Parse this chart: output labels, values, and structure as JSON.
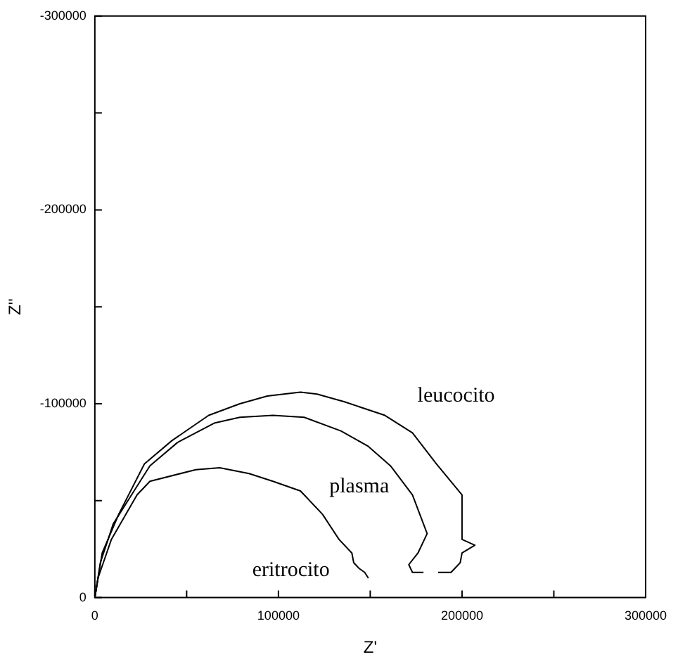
{
  "chart_data": {
    "type": "line",
    "xlabel": "Z'",
    "ylabel": "Z''",
    "xlim": [
      0,
      300000
    ],
    "ylim": [
      0,
      -300000
    ],
    "xticks": [
      0,
      {
        "value": 50000,
        "label": null
      },
      100000,
      {
        "value": 150000,
        "label": null
      },
      200000,
      {
        "value": 250000,
        "label": null
      },
      300000
    ],
    "yticks": [
      0,
      {
        "value": -50000,
        "label": null
      },
      -100000,
      {
        "value": -150000,
        "label": null
      },
      -200000,
      {
        "value": -250000,
        "label": null
      },
      -300000
    ],
    "marker": "none",
    "line_style": "solid",
    "legend": false,
    "series": [
      {
        "name": "leucocito",
        "color": "#000000",
        "x": [
          0,
          4000,
          13000,
          27000,
          42000,
          62000,
          79000,
          94000,
          112000,
          121000,
          136000,
          158000,
          173000,
          186000,
          200000,
          200000,
          207000,
          200000,
          199000,
          194000,
          187000
        ],
        "values": [
          0,
          -23000,
          -43000,
          -69000,
          -81000,
          -94000,
          -100000,
          -104000,
          -106000,
          -105000,
          -101000,
          -94000,
          -85000,
          -69000,
          -53000,
          -30000,
          -27000,
          -23000,
          -18000,
          -13000,
          -13000
        ]
      },
      {
        "name": "plasma",
        "color": "#000000",
        "x": [
          0,
          3000,
          10000,
          20000,
          30000,
          45000,
          65000,
          79000,
          97000,
          114000,
          134000,
          149000,
          161000,
          173000,
          177000,
          181000,
          176000,
          171000,
          173000,
          179000
        ],
        "values": [
          0,
          -18000,
          -38000,
          -53000,
          -68000,
          -80000,
          -90000,
          -93000,
          -94000,
          -93000,
          -86000,
          -78000,
          -68000,
          -53000,
          -43000,
          -33000,
          -23000,
          -17000,
          -13000,
          -13000
        ]
      },
      {
        "name": "eritrocito",
        "color": "#000000",
        "x": [
          0,
          1700,
          9000,
          23000,
          30000,
          55000,
          68000,
          84000,
          97000,
          112000,
          124000,
          133000,
          140000,
          141000,
          144000,
          147000,
          149000
        ],
        "values": [
          0,
          -10000,
          -30000,
          -53000,
          -60000,
          -66000,
          -67000,
          -64000,
          -60000,
          -55000,
          -43000,
          -30000,
          -23000,
          -18000,
          -15000,
          -13000,
          -10000
        ]
      }
    ]
  }
}
